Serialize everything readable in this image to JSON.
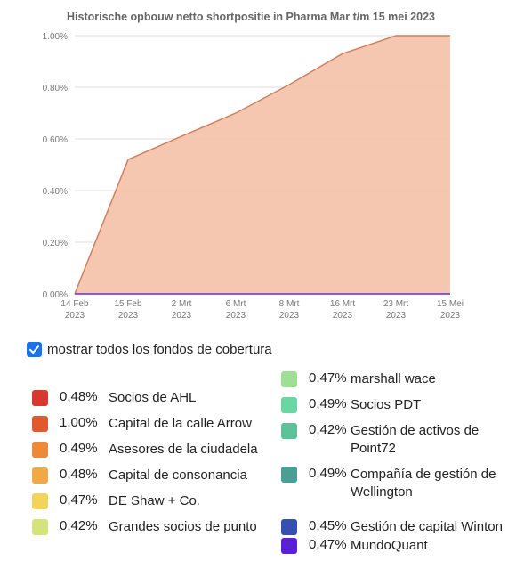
{
  "chart_data": {
    "type": "area",
    "title": "Historische opbouw netto shortpositie in Pharma Mar t/m 15 mei 2023",
    "x_tick_labels": [
      [
        "14 Feb",
        "2023"
      ],
      [
        "15 Feb",
        "2023"
      ],
      [
        "2 Mrt",
        "2023"
      ],
      [
        "6 Mrt",
        "2023"
      ],
      [
        "8 Mrt",
        "2023"
      ],
      [
        "16 Mrt",
        "2023"
      ],
      [
        "23 Mrt",
        "2023"
      ],
      [
        "15 Mei",
        "2023"
      ]
    ],
    "y_tick_labels": [
      "0.00%",
      "0.20%",
      "0.40%",
      "0.60%",
      "0.80%",
      "1.00%"
    ],
    "ylim": [
      0,
      1.0
    ],
    "grid": true,
    "series": [
      {
        "color": "#f4c4ac",
        "stroke": "#d0805e",
        "values": [
          0.0,
          0.52,
          0.61,
          0.7,
          0.81,
          0.93,
          1.0,
          1.0
        ]
      }
    ]
  },
  "toggle": {
    "label": "mostrar todos los fondos de cobertura",
    "checked": true,
    "color": "#1a73e8"
  },
  "legend_left": [
    {
      "pct": "0,48%",
      "name": "Socios de AHL",
      "color": "#d63a2f"
    },
    {
      "pct": "1,00%",
      "name": "Capital de la calle Arrow",
      "color": "#e05a30"
    },
    {
      "pct": "0,49%",
      "name": "Asesores de la ciudadela",
      "color": "#ec8a3a"
    },
    {
      "pct": "0,48%",
      "name": "Capital de consonancia",
      "color": "#f0aa45"
    },
    {
      "pct": "0,47%",
      "name": "DE Shaw + Co.",
      "color": "#f2d45a"
    },
    {
      "pct": "0,42%",
      "name": "Grandes socios de punto",
      "color": "#d4e47a"
    }
  ],
  "legend_right": [
    {
      "pct": "0,47%",
      "name": "marshall wace",
      "color": "#9edf95"
    },
    {
      "pct": "0,49%",
      "name": "Socios PDT",
      "color": "#6ad6a4"
    },
    {
      "pct": "0,42%",
      "name": "Gestión de activos de Point72",
      "color": "#5cc29a"
    },
    {
      "pct": "0,49%",
      "name": "Compañía de gestión de Wellington",
      "color": "#4a9e94"
    },
    {
      "pct": "0,45%",
      "name": "Gestión de capital Winton",
      "color": "#3450b0"
    },
    {
      "pct": "0,47%",
      "name": "MundoQuant",
      "color": "#5a1fd6"
    }
  ]
}
